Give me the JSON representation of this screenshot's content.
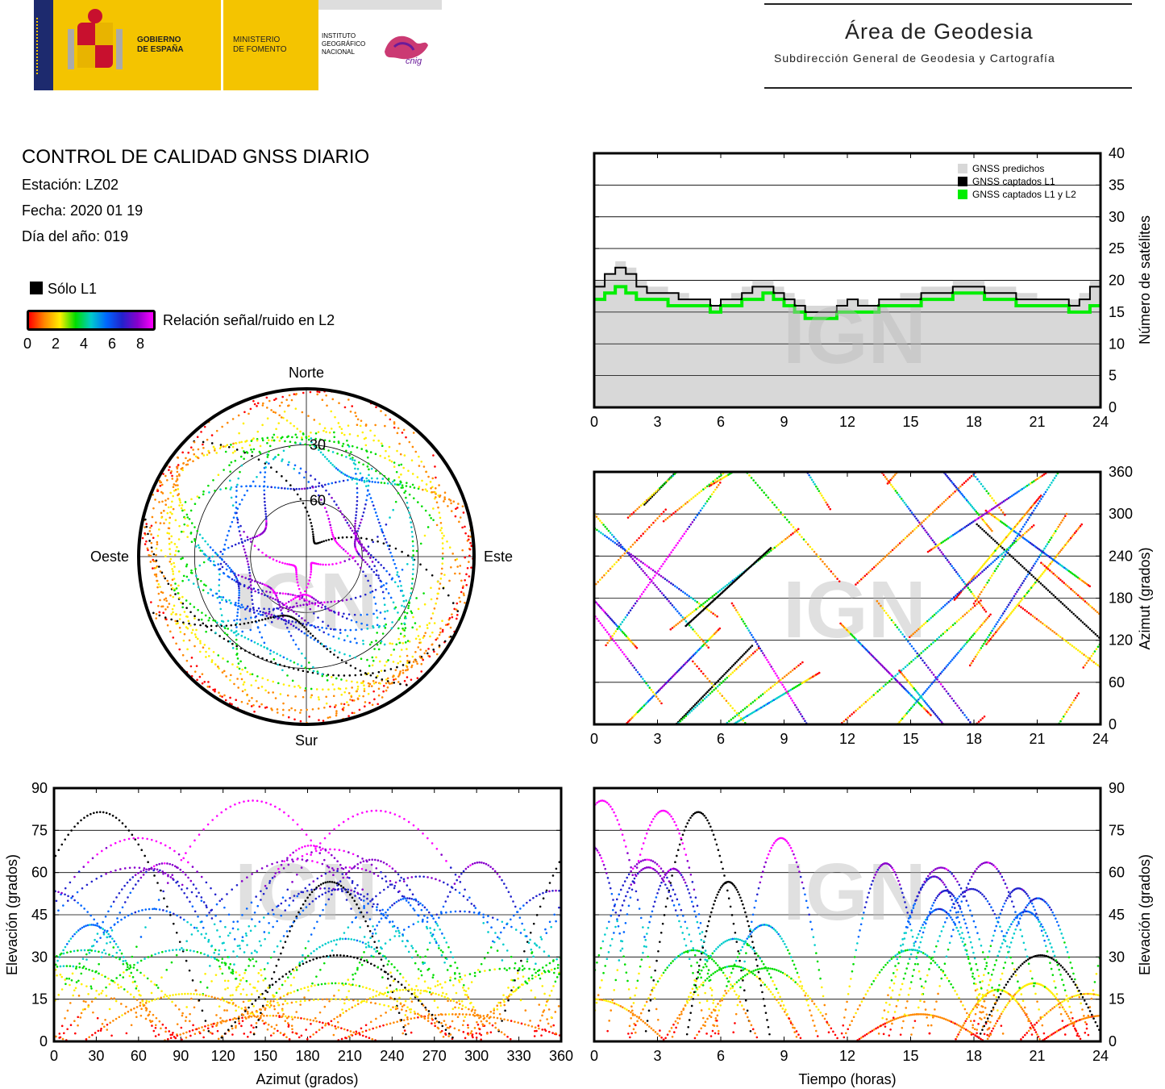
{
  "header": {
    "gov_line1": "GOBIERNO",
    "gov_line2": "DE ESPAÑA",
    "min_line1": "MINISTERIO",
    "min_line2": "DE FOMENTO",
    "ign_line1": "INSTITUTO",
    "ign_line2": "GEOGRÁFICO",
    "ign_line3": "NACIONAL",
    "cnig": "cnig",
    "area_title": "Área de Geodesia",
    "area_subtitle": "Subdirección General de Geodesia y Cartografía"
  },
  "report": {
    "title": "CONTROL DE CALIDAD GNSS DIARIO",
    "station": "Estación: LZ02",
    "date": "Fecha: 2020 01 19",
    "doy": "Día del año: 019",
    "legend_l1": "Sólo L1",
    "legend_snr": "Relación señal/ruido en L2",
    "snr_ticks": [
      "0",
      "2",
      "4",
      "6",
      "8"
    ]
  },
  "watermark": "IGN",
  "colors": {
    "predicted": "#d8d8d8",
    "l1": "#000000",
    "l1l2": "#00ee00",
    "snr_scale": [
      "#ff0000",
      "#ff8800",
      "#ffee00",
      "#00dd00",
      "#00cccc",
      "#0066ff",
      "#2222cc",
      "#8800cc",
      "#ff00ff"
    ]
  },
  "chart_data": [
    {
      "id": "satellites",
      "type": "line",
      "ylabel": "Número de satélites",
      "x_ticks": [
        "0",
        "3",
        "6",
        "9",
        "12",
        "15",
        "18",
        "21",
        "24"
      ],
      "y_ticks": [
        "0",
        "5",
        "10",
        "15",
        "20",
        "25",
        "30",
        "35",
        "40"
      ],
      "xlim": [
        0,
        24
      ],
      "ylim": [
        0,
        40
      ],
      "legend": [
        "GNSS predichos",
        "GNSS captados L1",
        "GNSS captados L1 y L2"
      ],
      "legend_position": "top-right",
      "grid": true,
      "x": [
        0,
        0.5,
        1,
        1.5,
        2,
        2.5,
        3,
        3.5,
        4,
        4.5,
        5,
        5.5,
        6,
        6.5,
        7,
        7.5,
        8,
        8.5,
        9,
        9.5,
        10,
        10.5,
        11,
        11.5,
        12,
        12.5,
        13,
        13.5,
        14,
        14.5,
        15,
        15.5,
        16,
        16.5,
        17,
        17.5,
        18,
        18.5,
        19,
        19.5,
        20,
        20.5,
        21,
        21.5,
        22,
        22.5,
        23,
        23.5,
        24
      ],
      "series": [
        {
          "name": "GNSS predichos",
          "values": [
            20,
            21,
            23,
            22,
            20,
            19,
            19,
            18,
            18,
            17,
            17,
            16,
            17,
            18,
            19,
            20,
            20,
            19,
            18,
            17,
            16,
            16,
            16,
            17,
            17,
            17,
            16,
            17,
            17,
            18,
            18,
            19,
            19,
            19,
            20,
            20,
            20,
            19,
            19,
            19,
            18,
            18,
            17,
            17,
            17,
            17,
            18,
            20,
            20
          ]
        },
        {
          "name": "GNSS captados L1",
          "values": [
            19,
            21,
            22,
            21,
            19,
            18,
            18,
            18,
            17,
            17,
            17,
            16,
            17,
            17,
            18,
            19,
            19,
            18,
            17,
            16,
            15,
            15,
            15,
            16,
            17,
            16,
            16,
            17,
            17,
            17,
            17,
            18,
            18,
            18,
            19,
            19,
            19,
            18,
            18,
            18,
            17,
            17,
            17,
            17,
            17,
            16,
            17,
            19,
            19
          ]
        },
        {
          "name": "GNSS captados L1 y L2",
          "values": [
            17,
            18,
            19,
            18,
            17,
            17,
            17,
            16,
            16,
            16,
            16,
            15,
            16,
            16,
            17,
            17,
            18,
            17,
            16,
            15,
            14,
            14,
            14,
            15,
            15,
            15,
            15,
            16,
            16,
            16,
            16,
            17,
            17,
            17,
            18,
            18,
            18,
            17,
            17,
            17,
            16,
            16,
            16,
            16,
            16,
            15,
            15,
            16,
            16
          ]
        }
      ]
    },
    {
      "id": "azimuth-time",
      "type": "scatter",
      "ylabel": "Azimut (grados)",
      "x_ticks": [
        "0",
        "3",
        "6",
        "9",
        "12",
        "15",
        "18",
        "21",
        "24"
      ],
      "y_ticks": [
        "0",
        "60",
        "120",
        "180",
        "240",
        "300",
        "360"
      ],
      "xlim": [
        0,
        24
      ],
      "ylim": [
        0,
        360
      ],
      "grid": true
    },
    {
      "id": "skyplot",
      "type": "scatter",
      "labels": {
        "north": "Norte",
        "south": "Sur",
        "east": "Este",
        "west": "Oeste"
      },
      "ring_labels": [
        "30",
        "60"
      ]
    },
    {
      "id": "elevation-azimuth",
      "type": "scatter",
      "xlabel": "Azimut (grados)",
      "ylabel": "Elevación (grados)",
      "x_ticks": [
        "0",
        "30",
        "60",
        "90",
        "120",
        "150",
        "180",
        "210",
        "240",
        "270",
        "300",
        "330",
        "360"
      ],
      "y_ticks": [
        "0",
        "15",
        "30",
        "45",
        "60",
        "75",
        "90"
      ],
      "xlim": [
        0,
        360
      ],
      "ylim": [
        0,
        90
      ],
      "grid": true
    },
    {
      "id": "elevation-time",
      "type": "scatter",
      "xlabel": "Tiempo (horas)",
      "ylabel": "Elevación (grados)",
      "x_ticks": [
        "0",
        "3",
        "6",
        "9",
        "12",
        "15",
        "18",
        "21",
        "24"
      ],
      "y_ticks": [
        "0",
        "15",
        "30",
        "45",
        "60",
        "75",
        "90"
      ],
      "xlim": [
        0,
        24
      ],
      "ylim": [
        0,
        90
      ],
      "grid": true
    }
  ]
}
